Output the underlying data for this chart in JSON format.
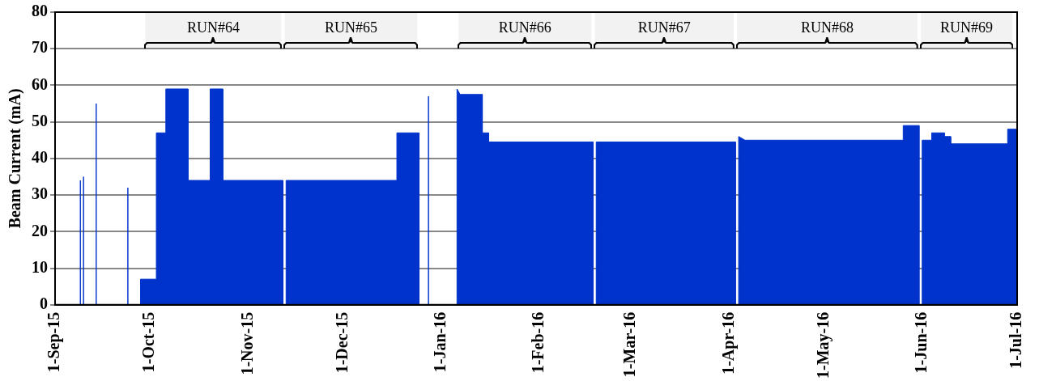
{
  "chart_data": {
    "type": "area",
    "ylabel": "Beam Current (mA)",
    "x": [
      "2015-09-01",
      "2015-09-09",
      "2015-09-09",
      "2015-09-09",
      "2015-09-10",
      "2015-09-10",
      "2015-09-10",
      "2015-09-14",
      "2015-09-14",
      "2015-09-14",
      "2015-09-24",
      "2015-09-24",
      "2015-09-24",
      "2015-09-28",
      "2015-09-28",
      "2015-10-03",
      "2015-10-03",
      "2015-10-06",
      "2015-10-06",
      "2015-10-13",
      "2015-10-13",
      "2015-10-20",
      "2015-10-20",
      "2015-10-24",
      "2015-10-24",
      "2015-11-12",
      "2015-11-12",
      "2015-11-13",
      "2015-11-13",
      "2015-12-18",
      "2015-12-18",
      "2015-12-25",
      "2015-12-25",
      "2015-12-28",
      "2015-12-28",
      "2015-12-28",
      "2016-01-06",
      "2016-01-06",
      "2016-01-07",
      "2016-01-14",
      "2016-01-14",
      "2016-01-16",
      "2016-01-16",
      "2016-02-18",
      "2016-02-18",
      "2016-02-19",
      "2016-02-19",
      "2016-04-03",
      "2016-04-03",
      "2016-04-04",
      "2016-04-04",
      "2016-04-06",
      "2016-05-26",
      "2016-05-26",
      "2016-05-31",
      "2016-05-31",
      "2016-06-01",
      "2016-06-01",
      "2016-06-04",
      "2016-06-04",
      "2016-06-08",
      "2016-06-08",
      "2016-06-10",
      "2016-06-10",
      "2016-06-28",
      "2016-06-28",
      "2016-07-01"
    ],
    "series": [
      {
        "color": "#0033cc",
        "values": [
          0,
          0,
          34,
          0,
          0,
          35,
          0,
          0,
          55,
          0,
          0,
          32,
          0,
          0,
          7,
          7,
          47,
          47,
          59,
          59,
          34,
          34,
          59,
          59,
          34,
          34,
          0,
          0,
          34,
          34,
          47,
          47,
          0,
          0,
          57,
          0,
          0,
          59,
          57.5,
          57.5,
          47,
          47,
          44.5,
          44.5,
          0,
          0,
          44.5,
          44.5,
          0,
          0,
          46,
          45,
          45,
          49,
          49,
          0,
          0,
          45,
          45,
          47,
          47,
          46,
          46,
          44,
          44,
          48,
          48
        ]
      }
    ],
    "xlim": [
      "2015-09-01",
      "2016-07-01"
    ],
    "xticks": [
      {
        "value": "2015-09-01",
        "label": "1-Sep-15"
      },
      {
        "value": "2015-10-01",
        "label": "1-Oct-15"
      },
      {
        "value": "2015-11-01",
        "label": "1-Nov-15"
      },
      {
        "value": "2015-12-01",
        "label": "1-Dec-15"
      },
      {
        "value": "2016-01-01",
        "label": "1-Jan-16"
      },
      {
        "value": "2016-02-01",
        "label": "1-Feb-16"
      },
      {
        "value": "2016-03-01",
        "label": "1-Mar-16"
      },
      {
        "value": "2016-04-01",
        "label": "1-Apr-16"
      },
      {
        "value": "2016-05-01",
        "label": "1-May-16"
      },
      {
        "value": "2016-06-01",
        "label": "1-Jun-16"
      },
      {
        "value": "2016-07-01",
        "label": "1-Jul-16"
      }
    ],
    "ylim": [
      0,
      80
    ],
    "yticks": [
      0,
      10,
      20,
      30,
      40,
      50,
      60,
      70,
      80
    ],
    "grid": "y",
    "bands": [
      {
        "axis": "x",
        "from": "2015-09-29",
        "to": "2015-11-12",
        "label": "RUN#64"
      },
      {
        "axis": "x",
        "from": "2015-11-12",
        "to": "2015-12-25",
        "label": "RUN#65"
      },
      {
        "axis": "x",
        "from": "2016-01-06",
        "to": "2016-02-18",
        "label": "RUN#66"
      },
      {
        "axis": "x",
        "from": "2016-02-18",
        "to": "2016-04-03",
        "label": "RUN#67"
      },
      {
        "axis": "x",
        "from": "2016-04-03",
        "to": "2016-05-31",
        "label": "RUN#68"
      },
      {
        "axis": "x",
        "from": "2016-05-31",
        "to": "2016-06-30",
        "label": "RUN#69"
      }
    ]
  }
}
